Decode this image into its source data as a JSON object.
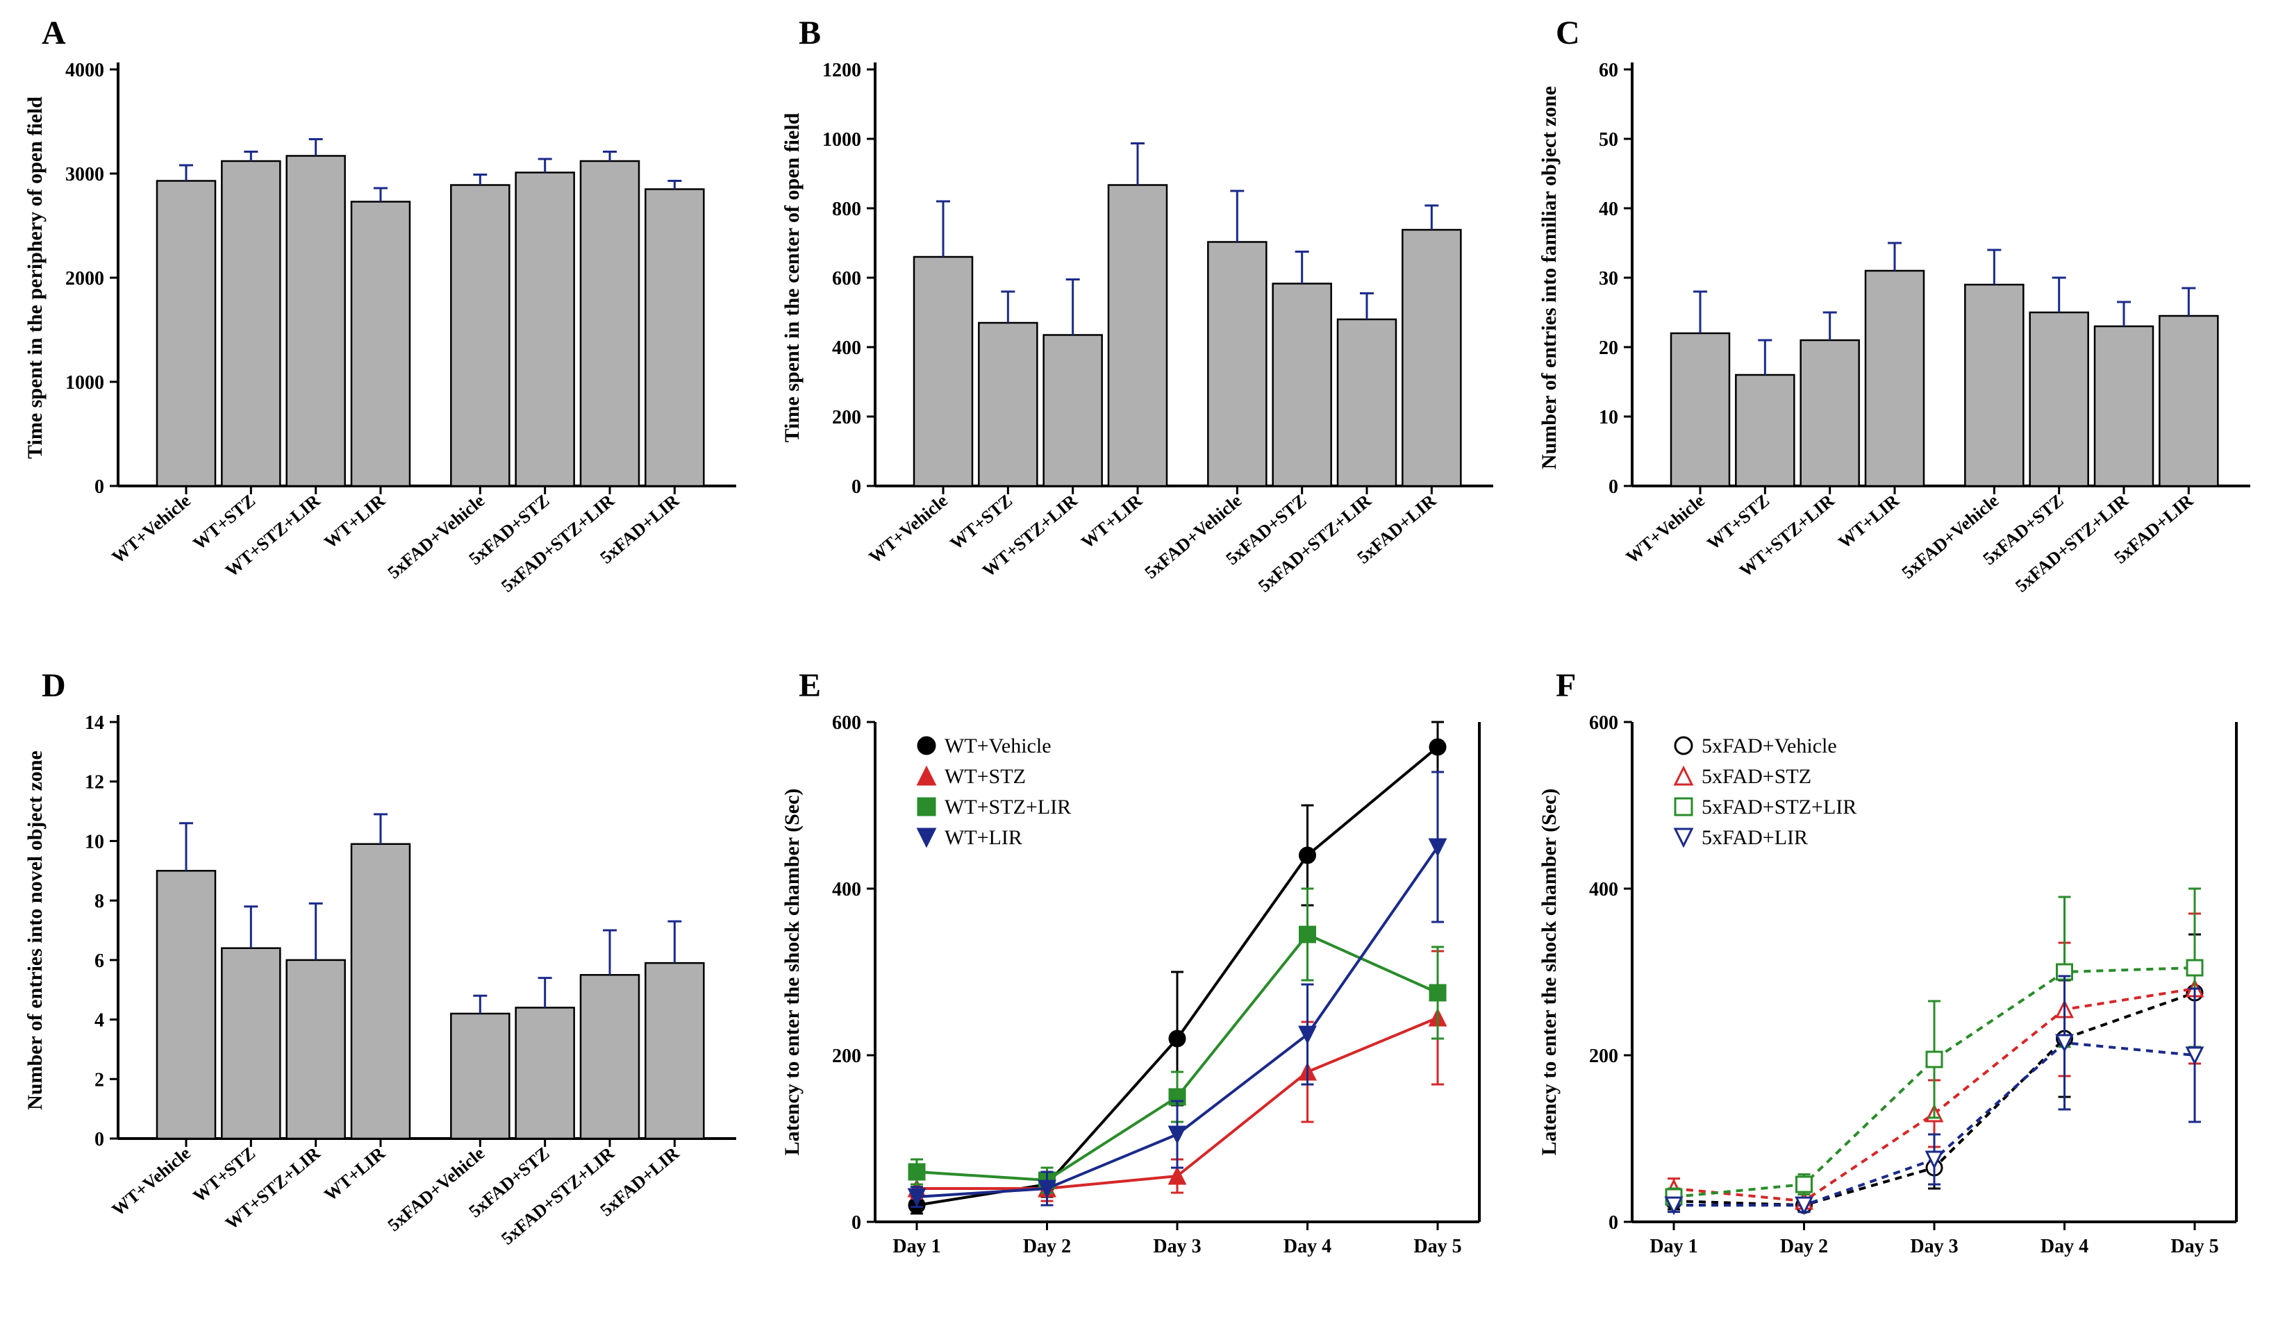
{
  "font_family": "Palatino Linotype, Book Antiqua, Palatino, serif",
  "colors": {
    "bar_fill": "#b0b0b0",
    "bar_stroke": "#000000",
    "error_bar": "#1a2a8a",
    "axis": "#000000",
    "bg": "#ffffff",
    "black": "#000000",
    "red": "#d62728",
    "green": "#2a8c2a",
    "blue": "#1a2a8a"
  },
  "bar_categories": [
    "WT+Vehicle",
    "WT+STZ",
    "WT+STZ+LIR",
    "WT+LIR",
    "5xFAD+Vehicle",
    "5xFAD+STZ",
    "5xFAD+STZ+LIR",
    "5xFAD+LIR"
  ],
  "panels": {
    "A": {
      "type": "bar",
      "letter": "A",
      "y_title": "Time spent in the periphery of open field",
      "ylim": [
        0,
        4000
      ],
      "ytick_step": 1000,
      "values": [
        2930,
        3120,
        3170,
        2730,
        2890,
        3010,
        3120,
        2850
      ],
      "errors": [
        150,
        90,
        160,
        130,
        100,
        130,
        90,
        80
      ]
    },
    "B": {
      "type": "bar",
      "letter": "B",
      "y_title": "Time spent in the center of open field",
      "ylim": [
        0,
        1200
      ],
      "ytick_step": 200,
      "values": [
        660,
        470,
        435,
        867,
        703,
        583,
        480,
        738
      ],
      "errors": [
        160,
        90,
        160,
        120,
        147,
        92,
        75,
        70
      ]
    },
    "C": {
      "type": "bar",
      "letter": "C",
      "y_title": "Number of entries into familiar object zone",
      "ylim": [
        0,
        60
      ],
      "ytick_step": 10,
      "values": [
        22,
        16,
        21,
        31,
        29,
        25,
        23,
        24.5
      ],
      "errors": [
        6,
        5,
        4,
        4,
        5,
        5,
        3.5,
        4
      ]
    },
    "D": {
      "type": "bar",
      "letter": "D",
      "y_title": "Number of entries into novel object zone",
      "ylim": [
        0,
        14
      ],
      "ytick_step": 2,
      "values": [
        9.0,
        6.4,
        6.0,
        9.9,
        4.2,
        4.4,
        5.5,
        5.9
      ],
      "errors": [
        1.6,
        1.4,
        1.9,
        1.0,
        0.6,
        1.0,
        1.5,
        1.4
      ]
    },
    "E": {
      "type": "line",
      "letter": "E",
      "y_title": "Latency to enter the shock chamber (Sec)",
      "ylim": [
        0,
        600
      ],
      "ytick_step": 200,
      "x_labels": [
        "Day 1",
        "Day 2",
        "Day 3",
        "Day 4",
        "Day 5"
      ],
      "legend_pos": "inside-left",
      "dashed": false,
      "filled_markers": true,
      "series": [
        {
          "name": "WT+Vehicle",
          "color": "#000000",
          "marker": "circle",
          "y": [
            20,
            45,
            220,
            440,
            570
          ],
          "err": [
            10,
            15,
            80,
            60,
            30
          ]
        },
        {
          "name": "WT+STZ",
          "color": "#d62728",
          "marker": "triangle-up",
          "y": [
            40,
            40,
            55,
            180,
            245
          ],
          "err": [
            12,
            15,
            20,
            60,
            80
          ]
        },
        {
          "name": "WT+STZ+LIR",
          "color": "#2a8c2a",
          "marker": "square",
          "y": [
            60,
            50,
            150,
            345,
            275
          ],
          "err": [
            15,
            15,
            30,
            55,
            55
          ]
        },
        {
          "name": "WT+LIR",
          "color": "#1a2a8a",
          "marker": "triangle-down",
          "y": [
            30,
            40,
            105,
            225,
            450
          ],
          "err": [
            12,
            20,
            40,
            60,
            90
          ]
        }
      ]
    },
    "F": {
      "type": "line",
      "letter": "F",
      "y_title": "Latency to enter the shock chamber (Sec)",
      "ylim": [
        0,
        600
      ],
      "ytick_step": 200,
      "x_labels": [
        "Day 1",
        "Day 2",
        "Day 3",
        "Day 4",
        "Day 5"
      ],
      "legend_pos": "inside-left",
      "dashed": true,
      "filled_markers": false,
      "series": [
        {
          "name": "5xFAD+Vehicle",
          "color": "#000000",
          "marker": "circle",
          "y": [
            25,
            20,
            65,
            220,
            275
          ],
          "err": [
            10,
            8,
            25,
            70,
            70
          ]
        },
        {
          "name": "5xFAD+STZ",
          "color": "#d62728",
          "marker": "triangle-up",
          "y": [
            40,
            25,
            130,
            255,
            280
          ],
          "err": [
            12,
            8,
            40,
            80,
            90
          ]
        },
        {
          "name": "5xFAD+STZ+LIR",
          "color": "#2a8c2a",
          "marker": "square",
          "y": [
            30,
            45,
            195,
            300,
            305
          ],
          "err": [
            10,
            12,
            70,
            90,
            95
          ]
        },
        {
          "name": "5xFAD+LIR",
          "color": "#1a2a8a",
          "marker": "triangle-down",
          "y": [
            20,
            20,
            75,
            215,
            200
          ],
          "err": [
            8,
            8,
            30,
            80,
            80
          ]
        }
      ]
    }
  }
}
